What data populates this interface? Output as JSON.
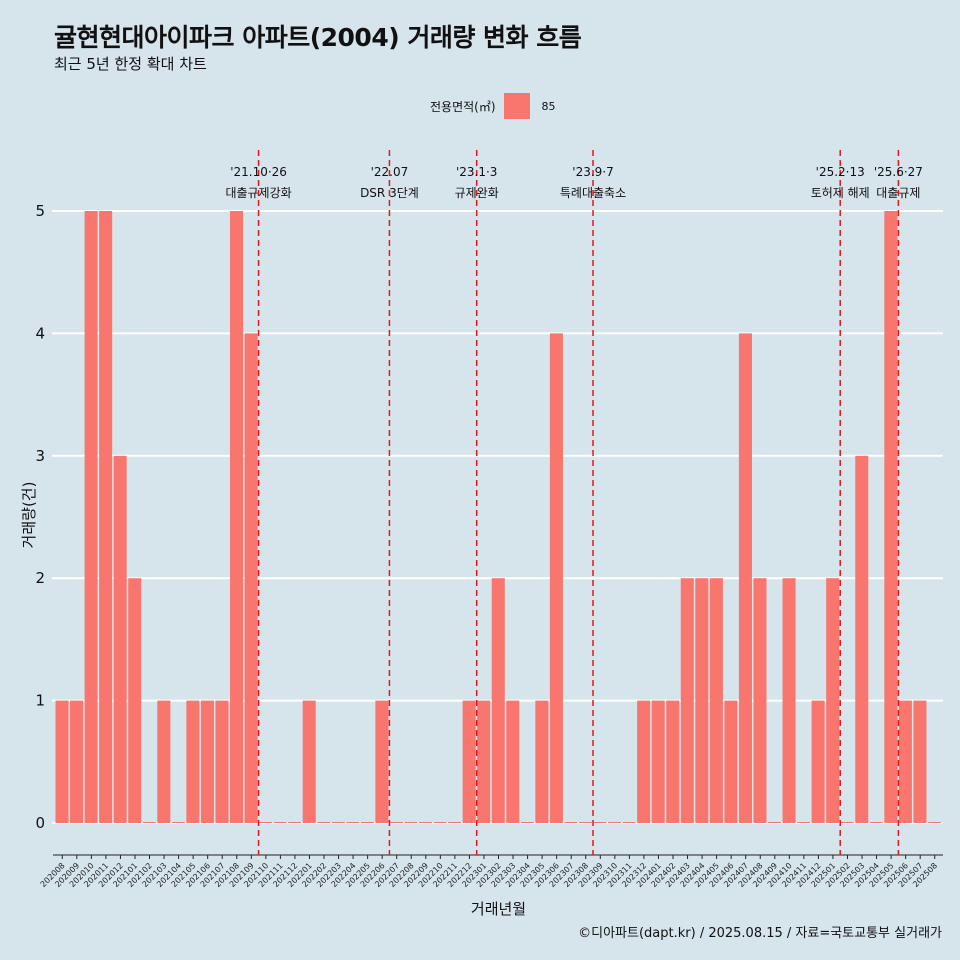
{
  "title": "귤현현대아이파크 아파트(2004) 거래량 변화 흐름",
  "subtitle": "최근 5년 한정 확대 차트",
  "legend": {
    "title": "전용면적(㎡)",
    "label": "85",
    "color": "#f8766d"
  },
  "caption": "©디아파트(dapt.kr) / 2025.08.15 / 자료=국토교통부 실거래가",
  "chart_data": {
    "type": "bar",
    "xlabel": "거래년월",
    "ylabel": "거래량(건)",
    "ylim": [
      0,
      5
    ],
    "y_ticks": [
      "0",
      "1",
      "2",
      "3",
      "4",
      "5"
    ],
    "grid": true,
    "legend_position": "top",
    "bar_color": "#f8766d",
    "categories": [
      "202008",
      "202009",
      "202010",
      "202011",
      "202012",
      "202101",
      "202102",
      "202103",
      "202104",
      "202105",
      "202106",
      "202107",
      "202108",
      "202109",
      "202110",
      "202111",
      "202112",
      "202201",
      "202202",
      "202203",
      "202204",
      "202205",
      "202206",
      "202207",
      "202208",
      "202209",
      "202210",
      "202211",
      "202212",
      "202301",
      "202302",
      "202303",
      "202304",
      "202305",
      "202306",
      "202307",
      "202308",
      "202309",
      "202310",
      "202311",
      "202312",
      "202401",
      "202402",
      "202403",
      "202404",
      "202405",
      "202406",
      "202407",
      "202408",
      "202409",
      "202410",
      "202411",
      "202412",
      "202501",
      "202502",
      "202503",
      "202504",
      "202505",
      "202506",
      "202507",
      "202508"
    ],
    "series": [
      {
        "name": "85",
        "values": [
          1,
          1,
          5,
          5,
          3,
          2,
          0,
          1,
          0,
          1,
          1,
          1,
          5,
          4,
          0,
          0,
          0,
          1,
          0,
          0,
          0,
          0,
          1,
          0,
          0,
          0,
          0,
          0,
          1,
          1,
          2,
          1,
          0,
          1,
          4,
          0,
          0,
          0,
          0,
          0,
          1,
          1,
          1,
          2,
          2,
          2,
          1,
          4,
          2,
          0,
          2,
          0,
          1,
          2,
          0,
          3,
          0,
          5,
          1,
          1,
          0
        ]
      }
    ],
    "annotations": [
      {
        "date_line": "'21.10·26",
        "label": "대출규제강화",
        "after_index": 13.5
      },
      {
        "date_line": "'22.07",
        "label": "DSR 3단계",
        "after_index": 22.5
      },
      {
        "date_line": "'23.1·3",
        "label": "규제완화",
        "after_index": 28.5
      },
      {
        "date_line": "'23.9·7",
        "label": "특례대출축소",
        "after_index": 36.5
      },
      {
        "date_line": "'25.2·13",
        "label": "토허제 해제",
        "after_index": 53.5
      },
      {
        "date_line": "'25.6·27",
        "label": "대출규제",
        "after_index": 57.5
      }
    ]
  }
}
